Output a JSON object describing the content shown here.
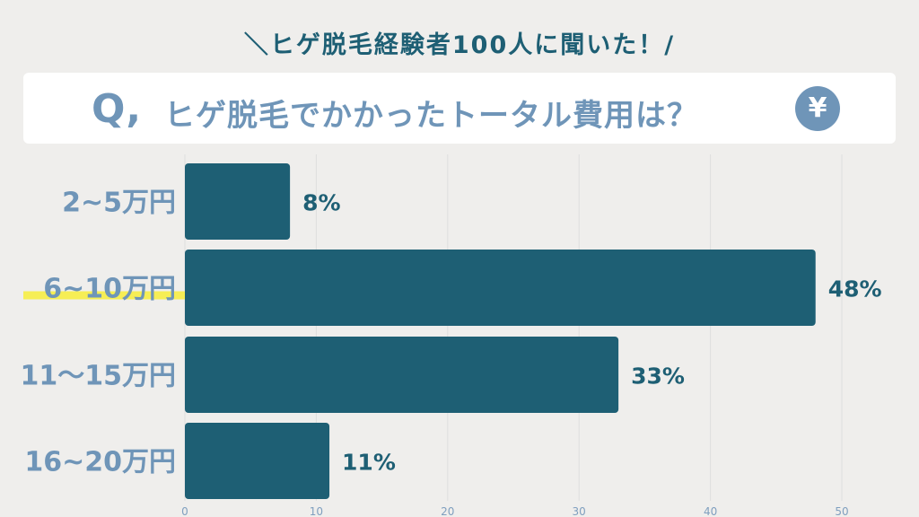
{
  "header": {
    "survey_note": "＼ヒゲ脱毛経験者100人に聞いた！/",
    "question_mark": "Q,",
    "question": "ヒゲ脱毛でかかったトータル費用は？",
    "yen_symbol": "¥"
  },
  "colors": {
    "bar": "#1e5f74",
    "category_text": "#6f95b8",
    "value_text": "#1e5f74",
    "highlight": "#f6ee55",
    "grid": "#dedede"
  },
  "icons": [
    "yen-icon"
  ],
  "chart_data": {
    "type": "bar",
    "orientation": "horizontal",
    "categories": [
      "2~5万円",
      "6~10万円",
      "11〜15万円",
      "16~20万円"
    ],
    "values": [
      8,
      48,
      33,
      11
    ],
    "value_labels": [
      "8%",
      "48%",
      "33%",
      "11%"
    ],
    "highlighted_category": "6~10万円",
    "xticks": [
      "0",
      "10",
      "20",
      "30",
      "40",
      "50"
    ],
    "xlim": [
      0,
      50
    ],
    "title": "",
    "xlabel": "",
    "ylabel": "",
    "grid": true
  }
}
